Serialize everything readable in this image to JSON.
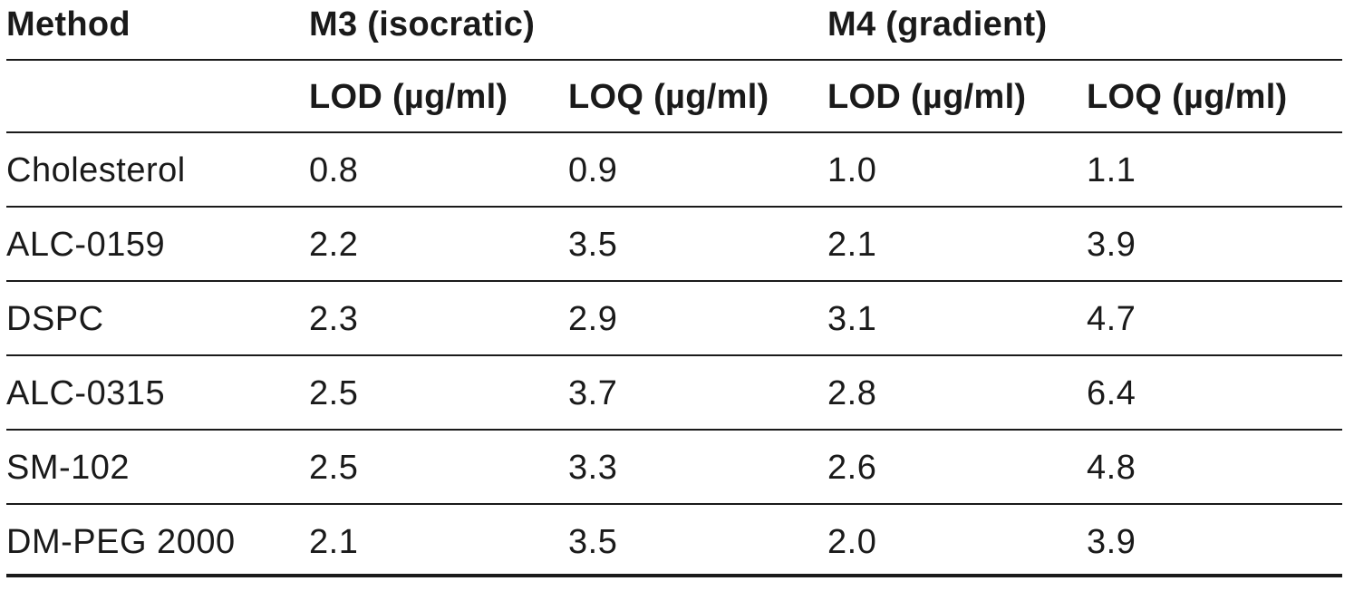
{
  "table": {
    "header": {
      "method": "Method",
      "group_m3": "M3 (isocratic)",
      "group_m4": "M4 (gradient)"
    },
    "subheader": {
      "c1": "LOD (µg/ml)",
      "c2": "LOQ (µg/ml)",
      "c3": "LOD (µg/ml)",
      "c4": "LOQ (µg/ml)"
    },
    "rows": [
      {
        "name": "Cholesterol",
        "m3_lod": "0.8",
        "m3_loq": "0.9",
        "m4_lod": "1.0",
        "m4_loq": "1.1"
      },
      {
        "name": "ALC-0159",
        "m3_lod": "2.2",
        "m3_loq": "3.5",
        "m4_lod": "2.1",
        "m4_loq": "3.9"
      },
      {
        "name": "DSPC",
        "m3_lod": "2.3",
        "m3_loq": "2.9",
        "m4_lod": "3.1",
        "m4_loq": "4.7"
      },
      {
        "name": "ALC-0315",
        "m3_lod": "2.5",
        "m3_loq": "3.7",
        "m4_lod": "2.8",
        "m4_loq": "6.4"
      },
      {
        "name": "SM-102",
        "m3_lod": "2.5",
        "m3_loq": "3.3",
        "m4_lod": "2.6",
        "m4_loq": "4.8"
      },
      {
        "name": "DM-PEG 2000",
        "m3_lod": "2.1",
        "m3_loq": "3.5",
        "m4_lod": "2.0",
        "m4_loq": "3.9"
      }
    ]
  }
}
